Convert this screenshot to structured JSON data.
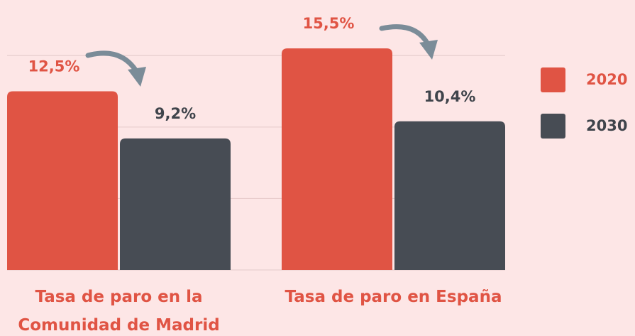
{
  "chart_data": {
    "type": "bar",
    "categories": [
      "Tasa de paro en la Comunidad de Madrid",
      "Tasa de paro en España"
    ],
    "series": [
      {
        "name": "2020",
        "color": "#e05444",
        "values": [
          12.5,
          15.5
        ],
        "value_labels": [
          "12,5%",
          "15,5%"
        ]
      },
      {
        "name": "2030",
        "color": "#474c54",
        "values": [
          9.2,
          10.4
        ],
        "value_labels": [
          "9,2%",
          "10,4%"
        ]
      }
    ],
    "ylim": [
      0,
      17
    ],
    "yticks": [
      0,
      5,
      10,
      15
    ],
    "grid": true,
    "legend": "right"
  }
}
